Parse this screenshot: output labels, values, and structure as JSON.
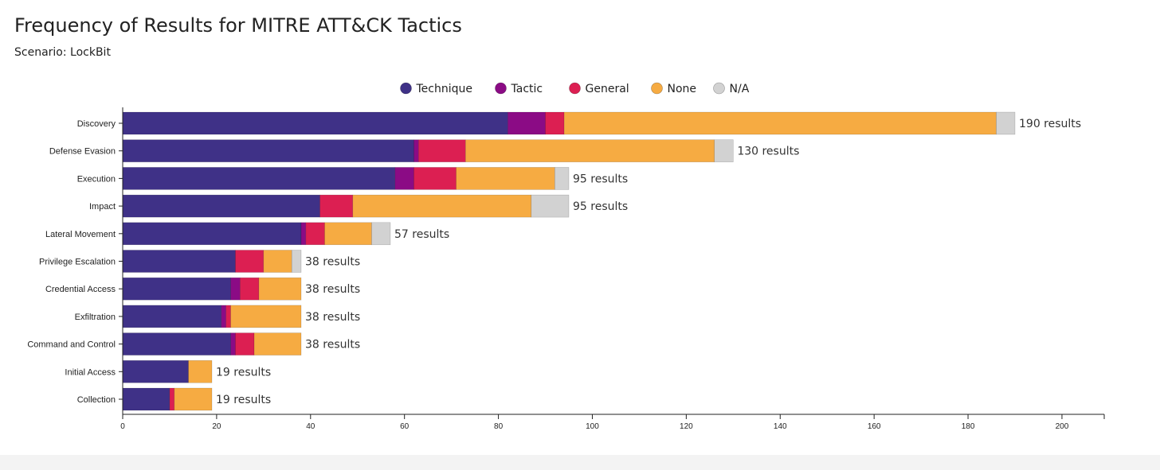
{
  "header": {
    "title": "Frequency of Results for MITRE ATT&CK Tactics",
    "subtitle": "Scenario: LockBit"
  },
  "chart_data": {
    "type": "bar",
    "orientation": "horizontal",
    "stacked": true,
    "legend_position": "top-center",
    "grid": false,
    "xlim": [
      0,
      209
    ],
    "x_ticks": [
      0,
      20,
      40,
      60,
      80,
      100,
      120,
      140,
      160,
      180,
      200
    ],
    "categories": [
      "Discovery",
      "Defense Evasion",
      "Execution",
      "Impact",
      "Lateral Movement",
      "Privilege Escalation",
      "Credential Access",
      "Exfiltration",
      "Command and Control",
      "Initial Access",
      "Collection"
    ],
    "series": [
      {
        "name": "Technique",
        "color": "#3f3187",
        "values": [
          82,
          62,
          58,
          42,
          38,
          24,
          23,
          21,
          23,
          14,
          10
        ]
      },
      {
        "name": "Tactic",
        "color": "#8b0b85",
        "values": [
          8,
          1,
          4,
          0,
          1,
          0,
          2,
          1,
          1,
          0,
          0
        ]
      },
      {
        "name": "General",
        "color": "#dc1f52",
        "values": [
          4,
          10,
          9,
          7,
          4,
          6,
          4,
          1,
          4,
          0,
          1
        ]
      },
      {
        "name": "None",
        "color": "#f6ab42",
        "values": [
          92,
          53,
          21,
          38,
          10,
          6,
          9,
          15,
          10,
          5,
          8
        ]
      },
      {
        "name": "N/A",
        "color": "#d2d2d2",
        "values": [
          4,
          4,
          3,
          8,
          4,
          2,
          0,
          0,
          0,
          0,
          0
        ]
      }
    ],
    "total_labels": [
      "190 results",
      "130 results",
      "95 results",
      "95 results",
      "57 results",
      "38 results",
      "38 results",
      "38 results",
      "38 results",
      "19 results",
      "19 results"
    ]
  }
}
